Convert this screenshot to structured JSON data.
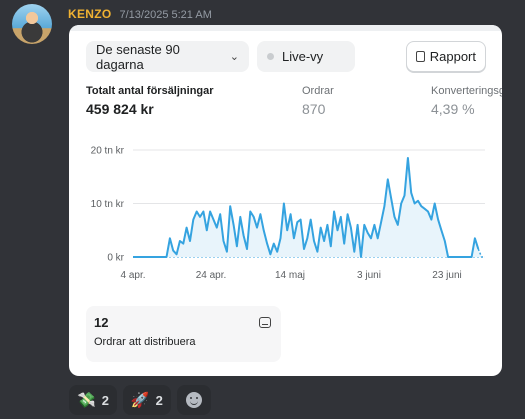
{
  "message": {
    "author": "KENZO",
    "timestamp": "7/13/2025 5:21 AM"
  },
  "card": {
    "range_label": "De senaste 90 dagarna",
    "live_label": "Live-vy",
    "report_label": "Rapport",
    "metrics": [
      {
        "label": "Totalt antal försäljningar",
        "value": "459 824 kr"
      },
      {
        "label": "Ordrar",
        "value": "870"
      },
      {
        "label": "Konverteringsgrad",
        "value": "4,39 %"
      }
    ],
    "orders_box": {
      "count": "12",
      "label": "Ordrar att distribuera"
    }
  },
  "chart_data": {
    "type": "line",
    "ylabel": "",
    "xlabel": "",
    "y_ticks": [
      "20 tn kr",
      "10 tn kr",
      "0 kr"
    ],
    "ylim": [
      0,
      20
    ],
    "x_ticks": [
      "4 apr.",
      "24 apr.",
      "14 maj",
      "3 juni",
      "23 juni"
    ],
    "grid": true,
    "color": "#35a3e0",
    "series": [
      {
        "values": [
          0,
          0,
          0,
          0,
          0,
          0,
          0,
          0,
          0,
          0,
          0,
          3.5,
          1.2,
          0.5,
          3.0,
          2.5,
          5.5,
          3.0,
          7.0,
          8.5,
          7.5,
          8.5,
          5.0,
          8.5,
          7.0,
          5.5,
          8.0,
          3.0,
          1.0,
          9.5,
          6.0,
          2.0,
          7.5,
          4.0,
          1.5,
          8.5,
          7.5,
          5.5,
          8.0,
          5.0,
          2.5,
          0.5,
          2.5,
          1.0,
          3.5,
          10.0,
          5.0,
          8.0,
          3.5,
          6.5,
          7.0,
          1.5,
          3.5,
          7.0,
          3.0,
          1.0,
          5.5,
          3.0,
          6.0,
          2.0,
          8.5,
          5.0,
          7.5,
          2.5,
          8.0,
          5.5,
          1.0,
          6.0,
          0,
          6.0,
          4.5,
          3.5,
          6.0,
          3.5,
          6.5,
          9.5,
          14.5,
          11.0,
          7.5,
          6.0,
          10.0,
          11.5,
          18.5,
          12.0,
          10.0,
          10.5,
          9.5,
          9.0,
          8.5,
          7.0,
          10.0,
          7.0,
          5.0,
          3.0,
          0,
          0,
          0,
          0,
          0,
          0,
          0,
          0,
          3.5,
          1.5,
          0,
          0
        ],
        "dashed_start_index": 103
      }
    ]
  },
  "reactions": [
    {
      "emoji": "💸",
      "count": "2"
    },
    {
      "emoji": "🚀",
      "count": "2"
    }
  ],
  "icons": [
    "chevron-down-icon",
    "live-dot-icon",
    "report-icon",
    "inbox-icon",
    "add-reaction-icon"
  ]
}
